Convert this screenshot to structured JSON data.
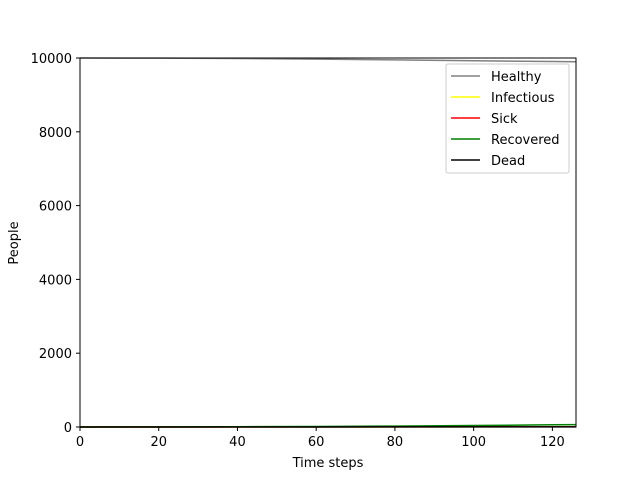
{
  "chart_data": {
    "type": "line",
    "title": "",
    "xlabel": "Time steps",
    "ylabel": "People",
    "xlim": [
      0,
      126
    ],
    "ylim": [
      0,
      10000
    ],
    "xticks": [
      0,
      20,
      40,
      60,
      80,
      100,
      120
    ],
    "yticks": [
      0,
      2000,
      4000,
      6000,
      8000,
      10000
    ],
    "grid": false,
    "legend_position": "top-right",
    "series": [
      {
        "name": "Healthy",
        "color": "#808080",
        "x": [
          0,
          20,
          40,
          60,
          80,
          100,
          120,
          126
        ],
        "y": [
          10000,
          9995,
          9985,
          9970,
          9950,
          9925,
          9905,
          9900
        ]
      },
      {
        "name": "Infectious",
        "color": "#ffff00",
        "x": [
          0,
          20,
          40,
          60,
          80,
          100,
          120,
          126
        ],
        "y": [
          0,
          1,
          2,
          3,
          4,
          5,
          6,
          6
        ]
      },
      {
        "name": "Sick",
        "color": "#ff0000",
        "x": [
          0,
          20,
          40,
          60,
          80,
          100,
          120,
          126
        ],
        "y": [
          0,
          1,
          2,
          3,
          4,
          6,
          8,
          8
        ]
      },
      {
        "name": "Recovered",
        "color": "#008000",
        "x": [
          0,
          20,
          40,
          60,
          80,
          100,
          120,
          126
        ],
        "y": [
          0,
          3,
          8,
          15,
          25,
          40,
          60,
          65
        ]
      },
      {
        "name": "Dead",
        "color": "#000000",
        "x": [
          0,
          20,
          40,
          60,
          80,
          100,
          120,
          126
        ],
        "y": [
          0,
          0,
          1,
          1,
          2,
          3,
          4,
          4
        ]
      }
    ]
  }
}
